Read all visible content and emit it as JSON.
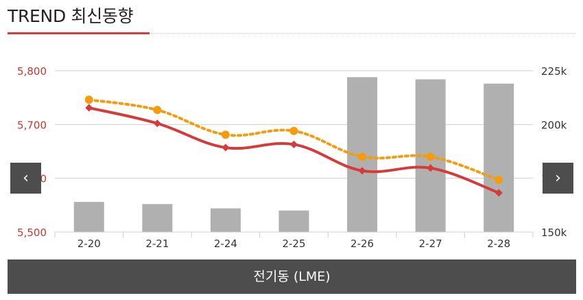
{
  "header": {
    "title": "TREND 최신동향"
  },
  "nav": {
    "prev_label": "‹",
    "next_label": "›"
  },
  "footer": {
    "label": "전기동 (LME)"
  },
  "chart_data": {
    "type": "bar",
    "categories": [
      "2-20",
      "2-21",
      "2-24",
      "2-25",
      "2-26",
      "2-27",
      "2-28"
    ],
    "left_axis": {
      "min": 5500,
      "max": 5800,
      "ticks": [
        "5,500",
        "5,600",
        "5,700",
        "5,800"
      ],
      "color": "#c0392b"
    },
    "right_axis": {
      "min": 150,
      "max": 225,
      "ticks": [
        "150k",
        "175k",
        "200k",
        "225k"
      ]
    },
    "series": [
      {
        "kind": "bar",
        "axis": "right",
        "values": [
          164,
          163,
          161,
          160,
          222,
          221,
          219
        ],
        "color": "#b0b0b0"
      },
      {
        "kind": "line",
        "axis": "left",
        "values": [
          5731,
          5702,
          5657,
          5663,
          5614,
          5619,
          5573
        ],
        "color": "#d63b3b",
        "marker": "diamond"
      },
      {
        "kind": "line",
        "axis": "left",
        "style": "dotted",
        "values": [
          5746,
          5727,
          5681,
          5688,
          5640,
          5640,
          5597
        ],
        "color": "#f39c12",
        "marker": "circle"
      }
    ],
    "grid": true
  }
}
